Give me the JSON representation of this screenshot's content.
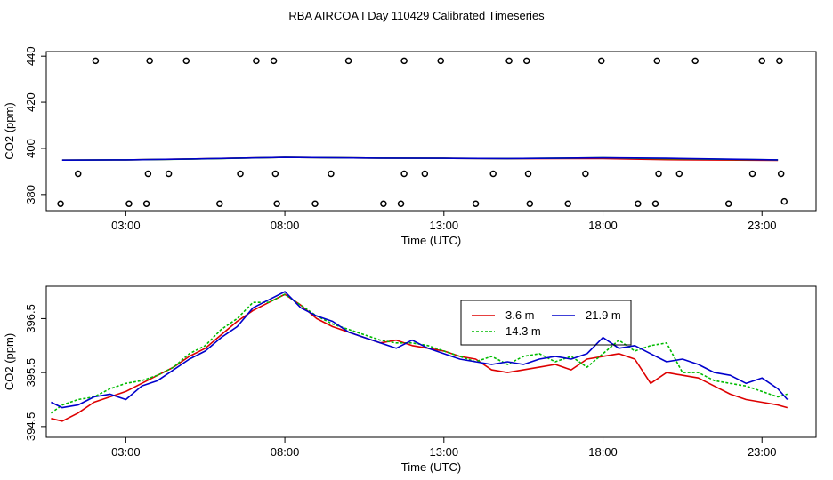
{
  "title": "RBA AIRCOA I  Day 110429  Calibrated Timeseries",
  "chart_data": [
    {
      "type": "line",
      "title": "",
      "xlabel": "Time (UTC)",
      "ylabel": "CO2 (ppm)",
      "xlim": [
        0.5,
        24.7
      ],
      "ylim": [
        373,
        442
      ],
      "x_ticks": [
        3,
        8,
        13,
        18,
        23
      ],
      "x_tick_labels": [
        "03:00",
        "08:00",
        "13:00",
        "18:00",
        "23:00"
      ],
      "y_ticks": [
        380,
        400,
        420,
        440
      ],
      "y_tick_labels": [
        "380",
        "400",
        "420",
        "440"
      ],
      "grid": false,
      "series": [
        {
          "name": "trace-red",
          "color": "#dd0000",
          "x": [
            1.0,
            3.0,
            5.0,
            8.0,
            11.0,
            13.0,
            15.0,
            18.0,
            20.0,
            23.5
          ],
          "values": [
            394.9,
            395.0,
            395.4,
            396.1,
            395.8,
            395.7,
            395.5,
            395.6,
            395.1,
            394.8
          ]
        },
        {
          "name": "trace-green",
          "color": "#00bb00",
          "x": [
            1.0,
            3.0,
            5.0,
            8.0,
            11.0,
            13.0,
            15.0,
            18.0,
            20.0,
            23.5
          ],
          "values": [
            394.9,
            395.0,
            395.3,
            396.1,
            395.8,
            395.7,
            395.6,
            395.9,
            395.5,
            395.0
          ]
        },
        {
          "name": "trace-blue",
          "color": "#0000cc",
          "x": [
            1.0,
            3.0,
            5.0,
            8.0,
            11.0,
            13.0,
            15.0,
            18.0,
            20.0,
            23.5
          ],
          "values": [
            394.9,
            395.0,
            395.4,
            396.1,
            395.8,
            395.7,
            395.6,
            395.9,
            395.7,
            395.0
          ]
        }
      ],
      "calibration_points": [
        {
          "x": 2.05,
          "y": 438
        },
        {
          "x": 3.75,
          "y": 438
        },
        {
          "x": 4.9,
          "y": 438
        },
        {
          "x": 7.1,
          "y": 438
        },
        {
          "x": 7.65,
          "y": 438
        },
        {
          "x": 10.0,
          "y": 438
        },
        {
          "x": 11.75,
          "y": 438
        },
        {
          "x": 12.9,
          "y": 438
        },
        {
          "x": 15.05,
          "y": 438
        },
        {
          "x": 15.6,
          "y": 438
        },
        {
          "x": 17.95,
          "y": 438
        },
        {
          "x": 19.7,
          "y": 438
        },
        {
          "x": 20.9,
          "y": 438
        },
        {
          "x": 23.0,
          "y": 438
        },
        {
          "x": 23.55,
          "y": 438
        },
        {
          "x": 1.5,
          "y": 389
        },
        {
          "x": 3.7,
          "y": 389
        },
        {
          "x": 4.35,
          "y": 389
        },
        {
          "x": 6.6,
          "y": 389
        },
        {
          "x": 7.7,
          "y": 389
        },
        {
          "x": 9.45,
          "y": 389
        },
        {
          "x": 11.75,
          "y": 389
        },
        {
          "x": 12.4,
          "y": 389
        },
        {
          "x": 14.55,
          "y": 389
        },
        {
          "x": 15.65,
          "y": 389
        },
        {
          "x": 17.45,
          "y": 389
        },
        {
          "x": 19.75,
          "y": 389
        },
        {
          "x": 20.4,
          "y": 389
        },
        {
          "x": 22.7,
          "y": 389
        },
        {
          "x": 23.6,
          "y": 389
        },
        {
          "x": 0.95,
          "y": 376
        },
        {
          "x": 3.1,
          "y": 376
        },
        {
          "x": 3.65,
          "y": 376
        },
        {
          "x": 5.95,
          "y": 376
        },
        {
          "x": 7.75,
          "y": 376
        },
        {
          "x": 8.95,
          "y": 376
        },
        {
          "x": 11.1,
          "y": 376
        },
        {
          "x": 11.65,
          "y": 376
        },
        {
          "x": 14.0,
          "y": 376
        },
        {
          "x": 15.7,
          "y": 376
        },
        {
          "x": 16.9,
          "y": 376
        },
        {
          "x": 19.1,
          "y": 376
        },
        {
          "x": 19.65,
          "y": 376
        },
        {
          "x": 21.95,
          "y": 376
        },
        {
          "x": 23.7,
          "y": 377
        }
      ]
    },
    {
      "type": "line",
      "title": "",
      "xlabel": "Time (UTC)",
      "ylabel": "CO2 (ppm)",
      "xlim": [
        0.5,
        24.7
      ],
      "ylim": [
        394.3,
        397.1
      ],
      "x_ticks": [
        3,
        8,
        13,
        18,
        23
      ],
      "x_tick_labels": [
        "03:00",
        "08:00",
        "13:00",
        "18:00",
        "23:00"
      ],
      "y_ticks": [
        394.5,
        395.5,
        396.5
      ],
      "y_tick_labels": [
        "394.5",
        "395.5",
        "396.5"
      ],
      "grid": false,
      "legend": {
        "position": "top-center",
        "columns": 2
      },
      "series": [
        {
          "name": "3.6 m",
          "color": "#dd0000",
          "dash": "solid",
          "x": [
            0.65,
            1.0,
            1.5,
            2.0,
            2.5,
            3.0,
            3.5,
            4.0,
            4.5,
            5.0,
            5.5,
            6.0,
            6.5,
            7.0,
            7.5,
            8.0,
            8.5,
            9.0,
            9.5,
            10.0,
            10.5,
            11.0,
            11.5,
            12.0,
            12.5,
            13.0,
            13.5,
            14.0,
            14.5,
            15.0,
            15.5,
            16.0,
            16.5,
            17.0,
            17.5,
            18.0,
            18.5,
            19.0,
            19.5,
            20.0,
            20.5,
            21.0,
            21.5,
            22.0,
            22.5,
            23.0,
            23.5,
            23.8
          ],
          "values": [
            394.65,
            394.6,
            394.75,
            394.95,
            395.05,
            395.15,
            395.3,
            395.45,
            395.6,
            395.8,
            395.95,
            396.2,
            396.45,
            396.65,
            396.8,
            396.95,
            396.75,
            396.5,
            396.35,
            396.25,
            396.15,
            396.05,
            396.1,
            396.0,
            395.95,
            395.9,
            395.8,
            395.75,
            395.55,
            395.5,
            395.55,
            395.6,
            395.65,
            395.55,
            395.75,
            395.8,
            395.85,
            395.75,
            395.3,
            395.5,
            395.45,
            395.4,
            395.25,
            395.1,
            395.0,
            394.95,
            394.9,
            394.85
          ]
        },
        {
          "name": "14.3 m",
          "color": "#00bb00",
          "dash": "dotted",
          "x": [
            0.65,
            1.0,
            1.5,
            2.0,
            2.5,
            3.0,
            3.5,
            4.0,
            4.5,
            5.0,
            5.5,
            6.0,
            6.5,
            7.0,
            7.5,
            8.0,
            8.5,
            9.0,
            9.5,
            10.0,
            10.5,
            11.0,
            11.5,
            12.0,
            12.5,
            13.0,
            13.5,
            14.0,
            14.5,
            15.0,
            15.5,
            16.0,
            16.5,
            17.0,
            17.5,
            18.0,
            18.5,
            19.0,
            19.5,
            20.0,
            20.5,
            21.0,
            21.5,
            22.0,
            22.5,
            23.0,
            23.5,
            23.8
          ],
          "values": [
            394.75,
            394.9,
            395.0,
            395.05,
            395.2,
            395.3,
            395.35,
            395.45,
            395.6,
            395.85,
            396.0,
            396.3,
            396.5,
            396.8,
            396.8,
            396.95,
            396.75,
            396.55,
            396.4,
            396.3,
            396.2,
            396.1,
            396.05,
            396.05,
            396.0,
            395.9,
            395.8,
            395.7,
            395.8,
            395.65,
            395.8,
            395.85,
            395.7,
            395.8,
            395.6,
            395.85,
            396.1,
            395.9,
            396.0,
            396.05,
            395.5,
            395.5,
            395.35,
            395.3,
            395.25,
            395.15,
            395.05,
            395.1
          ]
        },
        {
          "name": "21.9 m",
          "color": "#0000cc",
          "dash": "solid",
          "x": [
            0.65,
            1.0,
            1.5,
            2.0,
            2.5,
            3.0,
            3.5,
            4.0,
            4.5,
            5.0,
            5.5,
            6.0,
            6.5,
            7.0,
            7.5,
            8.0,
            8.5,
            9.0,
            9.5,
            10.0,
            10.5,
            11.0,
            11.5,
            12.0,
            12.5,
            13.0,
            13.5,
            14.0,
            14.5,
            15.0,
            15.5,
            16.0,
            16.5,
            17.0,
            17.5,
            18.0,
            18.5,
            19.0,
            19.5,
            20.0,
            20.5,
            21.0,
            21.5,
            22.0,
            22.5,
            23.0,
            23.5,
            23.8
          ],
          "values": [
            394.95,
            394.85,
            394.9,
            395.05,
            395.1,
            395.0,
            395.25,
            395.35,
            395.55,
            395.75,
            395.9,
            396.15,
            396.35,
            396.7,
            396.85,
            397.0,
            396.7,
            396.55,
            396.45,
            396.25,
            396.15,
            396.05,
            395.95,
            396.1,
            395.95,
            395.85,
            395.75,
            395.7,
            395.65,
            395.7,
            395.65,
            395.75,
            395.8,
            395.75,
            395.85,
            396.15,
            395.95,
            396.0,
            395.85,
            395.7,
            395.75,
            395.65,
            395.5,
            395.45,
            395.3,
            395.4,
            395.2,
            395.0
          ]
        }
      ]
    }
  ]
}
